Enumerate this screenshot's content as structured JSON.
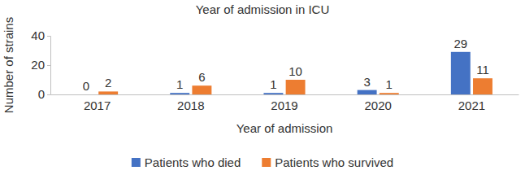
{
  "chart_data": {
    "type": "bar",
    "title": "Year of admission in ICU",
    "x_label": "Year of admission",
    "y_label": "Number of strains",
    "categories": [
      "2017",
      "2018",
      "2019",
      "2020",
      "2021"
    ],
    "series": [
      {
        "name": "Patients who died",
        "color": "#4472c4",
        "values": [
          0,
          1,
          1,
          3,
          29
        ]
      },
      {
        "name": "Patients who survived",
        "color": "#ed7d31",
        "values": [
          2,
          6,
          10,
          1,
          11
        ]
      }
    ],
    "ylim": [
      0,
      40
    ],
    "yticks": [
      0,
      20,
      40
    ],
    "grid": false,
    "data_labels": true,
    "legend": "bottom"
  }
}
